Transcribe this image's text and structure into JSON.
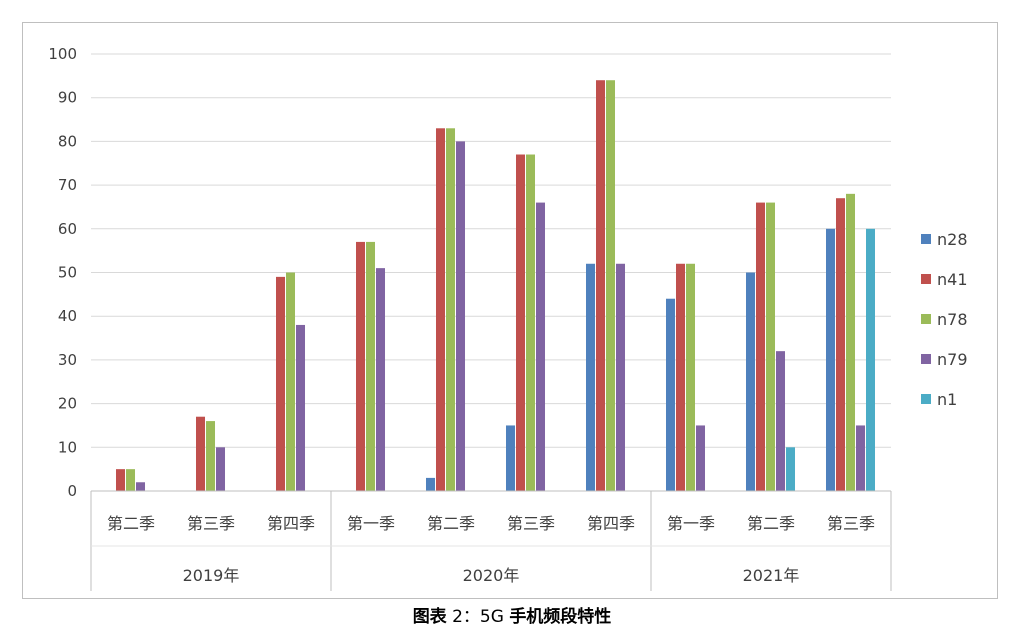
{
  "caption": {
    "prefix": "图表",
    "number": "2：5G",
    "title": "手机频段特性"
  },
  "chart_data": {
    "type": "bar",
    "ylim": [
      0,
      100
    ],
    "yticks": [
      0,
      10,
      20,
      30,
      40,
      50,
      60,
      70,
      80,
      90,
      100
    ],
    "grid": true,
    "legend_position": "right",
    "groups": [
      {
        "label": "2019年",
        "categories": [
          "第二季",
          "第三季",
          "第四季"
        ]
      },
      {
        "label": "2020年",
        "categories": [
          "第一季",
          "第二季",
          "第三季",
          "第四季"
        ]
      },
      {
        "label": "2021年",
        "categories": [
          "第一季",
          "第二季",
          "第三季"
        ]
      }
    ],
    "categories": [
      "第二季",
      "第三季",
      "第四季",
      "第一季",
      "第二季",
      "第三季",
      "第四季",
      "第一季",
      "第二季",
      "第三季"
    ],
    "series": [
      {
        "name": "n28",
        "color": "#4f81bd",
        "values": [
          0,
          0,
          0,
          0,
          3,
          15,
          52,
          44,
          50,
          60
        ]
      },
      {
        "name": "n41",
        "color": "#c0504d",
        "values": [
          5,
          17,
          49,
          57,
          83,
          77,
          94,
          52,
          66,
          67
        ]
      },
      {
        "name": "n78",
        "color": "#9bbb59",
        "values": [
          5,
          16,
          50,
          57,
          83,
          77,
          94,
          52,
          66,
          68
        ]
      },
      {
        "name": "n79",
        "color": "#8064a2",
        "values": [
          2,
          10,
          38,
          51,
          80,
          66,
          52,
          15,
          32,
          15
        ]
      },
      {
        "name": "n1",
        "color": "#4bacc6",
        "values": [
          0,
          0,
          0,
          0,
          0,
          0,
          0,
          0,
          10,
          60
        ]
      }
    ]
  }
}
